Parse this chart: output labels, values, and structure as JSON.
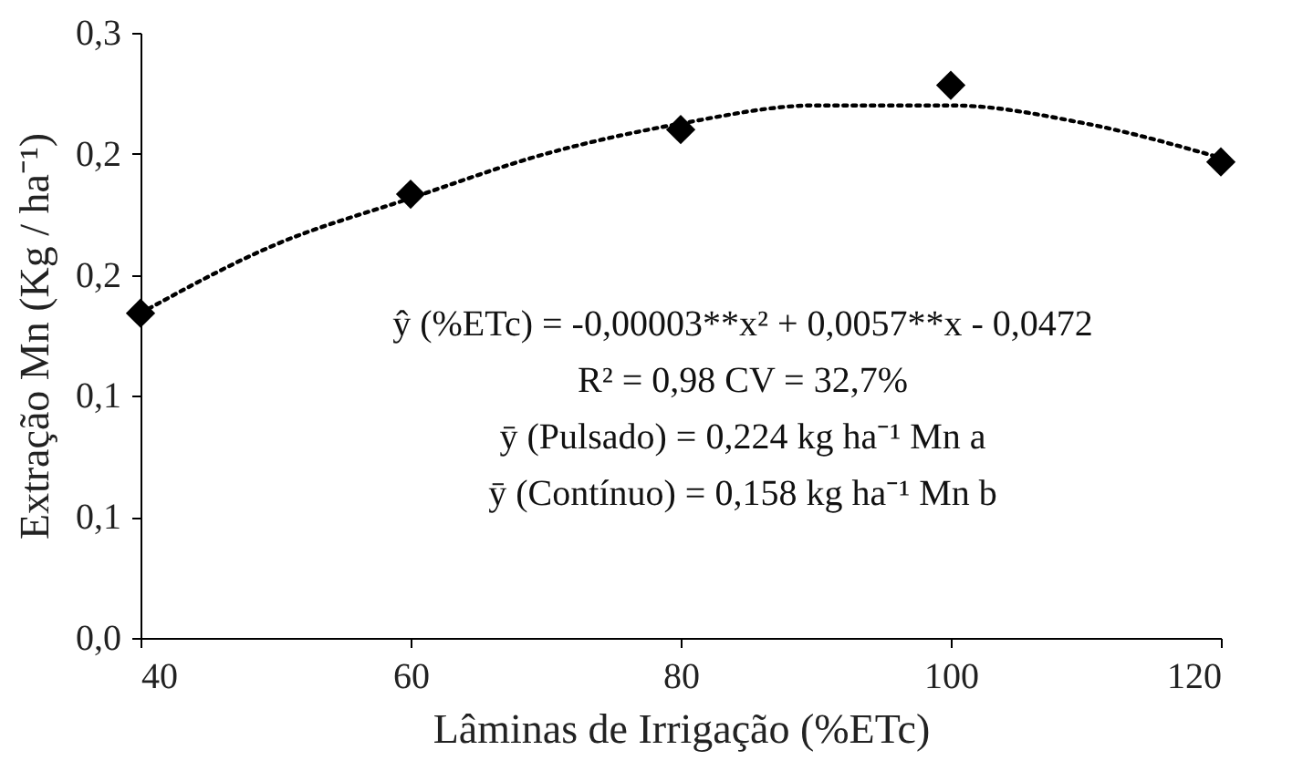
{
  "chart_data": {
    "type": "scatter",
    "xlabel": "Lâminas de Irrigação (%ETc)",
    "ylabel": "Extração Mn (Kg / ha⁻¹)",
    "x": [
      40,
      60,
      80,
      100,
      120
    ],
    "series": [
      {
        "type": "scatter",
        "color": "#000000",
        "marker": "diamond",
        "values": [
          0.161,
          0.22,
          0.252,
          0.274,
          0.236
        ]
      },
      {
        "type": "line",
        "color": "#000000",
        "line_style": "dotted",
        "marker": "none",
        "x": [
          40,
          50,
          60,
          70,
          80,
          90,
          100,
          110,
          120
        ],
        "values": [
          0.161,
          0.195,
          0.218,
          0.24,
          0.255,
          0.264,
          0.264,
          0.255,
          0.238
        ]
      }
    ],
    "xlim": [
      40,
      120
    ],
    "xticks": [
      40,
      60,
      80,
      100,
      120
    ],
    "ylim": [
      0,
      0.3
    ],
    "yticks": [
      {
        "value": 0,
        "label": "0,0"
      },
      {
        "value": 0.06,
        "label": "0,1"
      },
      {
        "value": 0.12,
        "label": "0,1"
      },
      {
        "value": 0.18,
        "label": "0,2"
      },
      {
        "value": 0.24,
        "label": "0,2"
      },
      {
        "value": 0.3,
        "label": "0,3"
      }
    ],
    "grid": false,
    "annotations": [
      "ŷ (%ETc) = -0,00003**x²  + 0,0057**x  - 0,0472",
      "R² = 0,98       CV = 32,7%",
      "ȳ (Pulsado) = 0,224 kg ha⁻¹ Mn a",
      "ȳ (Contínuo) = 0,158 kg ha⁻¹ Mn b"
    ]
  }
}
